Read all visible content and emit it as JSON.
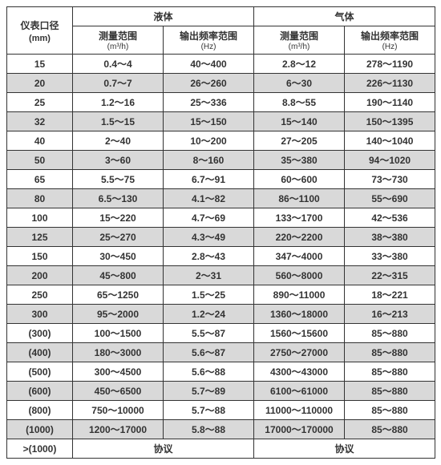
{
  "table": {
    "header": {
      "diameter_label": "仪表口径",
      "diameter_unit": "(mm)",
      "liquid_label": "液体",
      "gas_label": "气体",
      "meas_range_label": "测量范围",
      "meas_range_unit": "(m³/h)",
      "freq_range_label": "输出频率范围",
      "freq_range_unit": "(Hz)"
    },
    "rows": [
      {
        "d": "15",
        "lm": "0.4～4",
        "lf": "40～400",
        "gm": "2.8～12",
        "gf": "278～1190",
        "alt": false
      },
      {
        "d": "20",
        "lm": "0.7～7",
        "lf": "26～260",
        "gm": "6～30",
        "gf": "226～1130",
        "alt": true
      },
      {
        "d": "25",
        "lm": "1.2～16",
        "lf": "25～336",
        "gm": "8.8～55",
        "gf": "190～1140",
        "alt": false
      },
      {
        "d": "32",
        "lm": "1.5～15",
        "lf": "15～150",
        "gm": "15～140",
        "gf": "150～1395",
        "alt": true
      },
      {
        "d": "40",
        "lm": "2～40",
        "lf": "10～200",
        "gm": "27～205",
        "gf": "140～1040",
        "alt": false
      },
      {
        "d": "50",
        "lm": "3～60",
        "lf": "8～160",
        "gm": "35～380",
        "gf": "94～1020",
        "alt": true
      },
      {
        "d": "65",
        "lm": "5.5～75",
        "lf": "6.7～91",
        "gm": "60～600",
        "gf": "73～730",
        "alt": false
      },
      {
        "d": "80",
        "lm": "6.5～130",
        "lf": "4.1～82",
        "gm": "86～1100",
        "gf": "55～690",
        "alt": true
      },
      {
        "d": "100",
        "lm": "15～220",
        "lf": "4.7～69",
        "gm": "133～1700",
        "gf": "42～536",
        "alt": false
      },
      {
        "d": "125",
        "lm": "25～270",
        "lf": "4.3～49",
        "gm": "220～2200",
        "gf": "38～380",
        "alt": true
      },
      {
        "d": "150",
        "lm": "30～450",
        "lf": "2.8～43",
        "gm": "347～4000",
        "gf": "33～380",
        "alt": false
      },
      {
        "d": "200",
        "lm": "45～800",
        "lf": "2～31",
        "gm": "560～8000",
        "gf": "22～315",
        "alt": true
      },
      {
        "d": "250",
        "lm": "65～1250",
        "lf": "1.5～25",
        "gm": "890～11000",
        "gf": "18～221",
        "alt": false
      },
      {
        "d": "300",
        "lm": "95～2000",
        "lf": "1.2～24",
        "gm": "1360～18000",
        "gf": "16～213",
        "alt": true
      },
      {
        "d": "(300)",
        "lm": "100～1500",
        "lf": "5.5～87",
        "gm": "1560～15600",
        "gf": "85～880",
        "alt": false
      },
      {
        "d": "(400)",
        "lm": "180～3000",
        "lf": "5.6～87",
        "gm": "2750～27000",
        "gf": "85～880",
        "alt": true
      },
      {
        "d": "(500)",
        "lm": "300～4500",
        "lf": "5.6～88",
        "gm": "4300～43000",
        "gf": "85～880",
        "alt": false
      },
      {
        "d": "(600)",
        "lm": "450～6500",
        "lf": "5.7～89",
        "gm": "6100～61000",
        "gf": "85～880",
        "alt": true
      },
      {
        "d": "(800)",
        "lm": "750～10000",
        "lf": "5.7～88",
        "gm": "11000～110000",
        "gf": "85～880",
        "alt": false
      },
      {
        "d": "(1000)",
        "lm": "1200～17000",
        "lf": "5.8～88",
        "gm": "17000～170000",
        "gf": "85～880",
        "alt": true
      }
    ],
    "footer": {
      "d": ">(1000)",
      "liquid_text": "协议",
      "gas_text": "协议"
    },
    "colors": {
      "alt_bg": "#d9d9d9",
      "border": "#333333",
      "text": "#333333",
      "bg": "#ffffff"
    }
  }
}
